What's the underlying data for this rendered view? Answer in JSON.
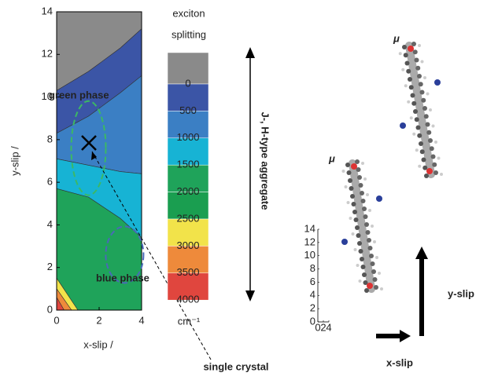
{
  "chart_data": {
    "type": "contour",
    "x_label": "x-slip  /",
    "y_label": "y-slip  /",
    "xlim": [
      0,
      4
    ],
    "ylim": [
      0,
      14
    ],
    "xticks": [
      0,
      2,
      4
    ],
    "yticks": [
      0,
      2,
      4,
      6,
      8,
      10,
      12,
      14
    ],
    "regions": [
      {
        "color": "#8a8a8a",
        "x": [
          0,
          1.5,
          3,
          4,
          4,
          0
        ],
        "y": [
          10.3,
          11.2,
          12.3,
          13.2,
          14,
          14
        ]
      },
      {
        "color": "#3b55a6",
        "x": [
          0,
          1.5,
          3,
          4,
          4,
          3,
          1.5,
          0
        ],
        "y": [
          8.3,
          9.1,
          10.2,
          11,
          13.2,
          12.3,
          11.2,
          10.3
        ]
      },
      {
        "color": "#3b7fc4",
        "x": [
          0,
          1.5,
          3,
          4,
          4,
          3,
          1.5,
          0
        ],
        "y": [
          7.1,
          6.8,
          6.5,
          6.4,
          11,
          10.2,
          9.1,
          8.3
        ]
      },
      {
        "color": "#17b3d4",
        "x": [
          0,
          1.5,
          3,
          4,
          4,
          3,
          1.5,
          0
        ],
        "y": [
          5.7,
          5.3,
          4.3,
          3.4,
          6.4,
          6.5,
          6.8,
          7.1
        ]
      },
      {
        "color": "#1fa35a",
        "x": [
          0,
          1,
          4,
          4,
          3,
          1.5,
          0
        ],
        "y": [
          1.5,
          0,
          0,
          3.4,
          4.3,
          5.3,
          5.7
        ]
      },
      {
        "color": "#f2e34a",
        "x": [
          0,
          0.7,
          1,
          0
        ],
        "y": [
          1,
          0,
          0,
          1.5
        ]
      },
      {
        "color": "#ee8a3b",
        "x": [
          0,
          0.35,
          0.7,
          0
        ],
        "y": [
          0.6,
          0,
          0,
          1
        ]
      },
      {
        "color": "#e0463e",
        "x": [
          0,
          0.35,
          0
        ],
        "y": [
          0,
          0,
          0.6
        ]
      }
    ],
    "colorbar": {
      "title": [
        "exciton",
        "splitting"
      ],
      "unit": "cm⁻¹",
      "ticks": [
        0,
        500,
        1000,
        1500,
        2000,
        2500,
        3000,
        3500,
        4000
      ],
      "colors": [
        "#8a8a8a",
        "#3b55a6",
        "#3b7fc4",
        "#17b3d4",
        "#1fa35a",
        "#1a9e50",
        "#f2e34a",
        "#ee8a3b",
        "#e0463e"
      ]
    },
    "annotations": {
      "green_phase": "green phase",
      "blue_phase": "blue phase",
      "single_crystal": "single crystal",
      "aggregate": "J-, H-type  aggregate"
    }
  },
  "schematic": {
    "mu_labels": [
      "μ",
      "μ"
    ],
    "x_arrow_label": "x-slip",
    "y_arrow_label": "y-slip",
    "inset": {
      "xlim": [
        0,
        4
      ],
      "ylim": [
        0,
        14
      ],
      "xticks": [
        0,
        2,
        4
      ],
      "yticks": [
        0,
        2,
        4,
        6,
        8,
        10,
        12,
        14
      ]
    }
  }
}
